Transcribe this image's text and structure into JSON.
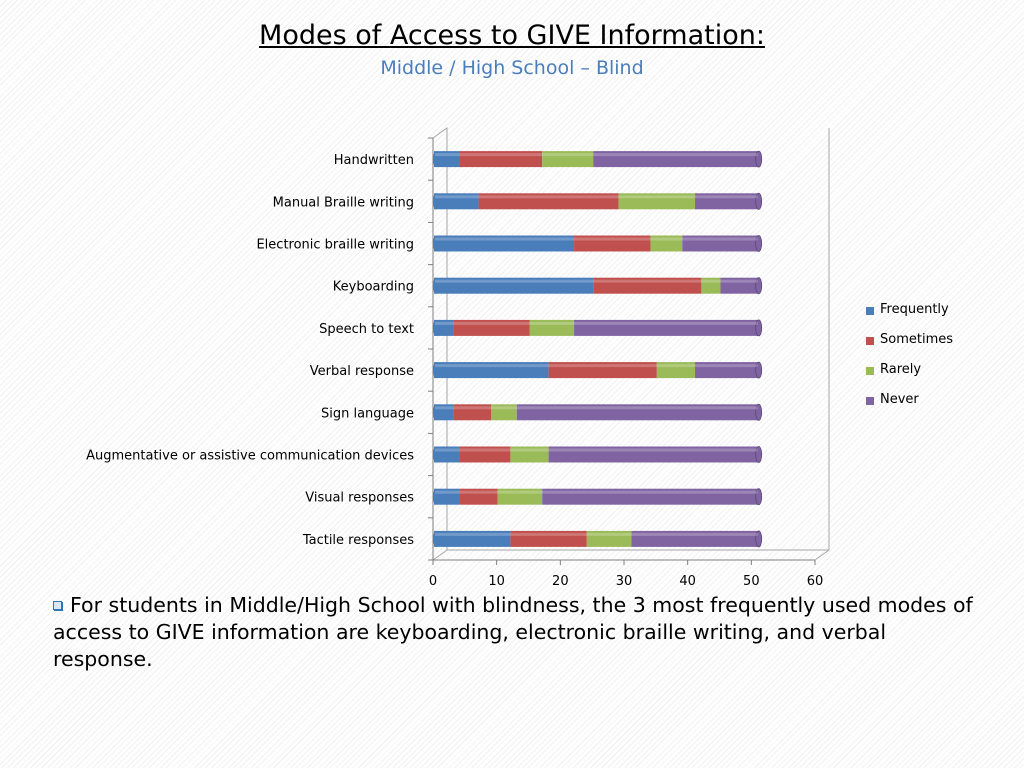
{
  "title": "Modes of Access to GIVE Information:",
  "subtitle": "Middle / High School – Blind",
  "note": "For students in Middle/High School with blindness, the 3 most frequently used modes of access to GIVE information are keyboarding, electronic braille writing, and verbal response.",
  "bullet_icon": "hollow-square-bullet-icon",
  "chart_data": {
    "type": "bar",
    "orientation": "horizontal",
    "stacked": true,
    "categories": [
      "Handwritten",
      "Manual Braille writing",
      "Electronic braille writing",
      "Keyboarding",
      "Speech to text",
      "Verbal response",
      "Sign language",
      "Augmentative or assistive communication devices",
      "Visual responses",
      "Tactile responses"
    ],
    "series": [
      {
        "name": "Frequently",
        "color": "#4a7ebb",
        "values": [
          4,
          7,
          22,
          25,
          3,
          18,
          3,
          4,
          4,
          12
        ]
      },
      {
        "name": "Sometimes",
        "color": "#c0504d",
        "values": [
          13,
          22,
          12,
          17,
          12,
          17,
          6,
          8,
          6,
          12
        ]
      },
      {
        "name": "Rarely",
        "color": "#9bbb59",
        "values": [
          8,
          12,
          5,
          3,
          7,
          6,
          4,
          6,
          7,
          7
        ]
      },
      {
        "name": "Never",
        "color": "#8064a2",
        "values": [
          26,
          10,
          12,
          6,
          29,
          10,
          38,
          33,
          34,
          20
        ]
      }
    ],
    "xlim": [
      0,
      60
    ],
    "xticks": [
      "0",
      "10",
      "20",
      "30",
      "40",
      "50",
      "60"
    ],
    "legend_position": "right",
    "grid": false
  }
}
